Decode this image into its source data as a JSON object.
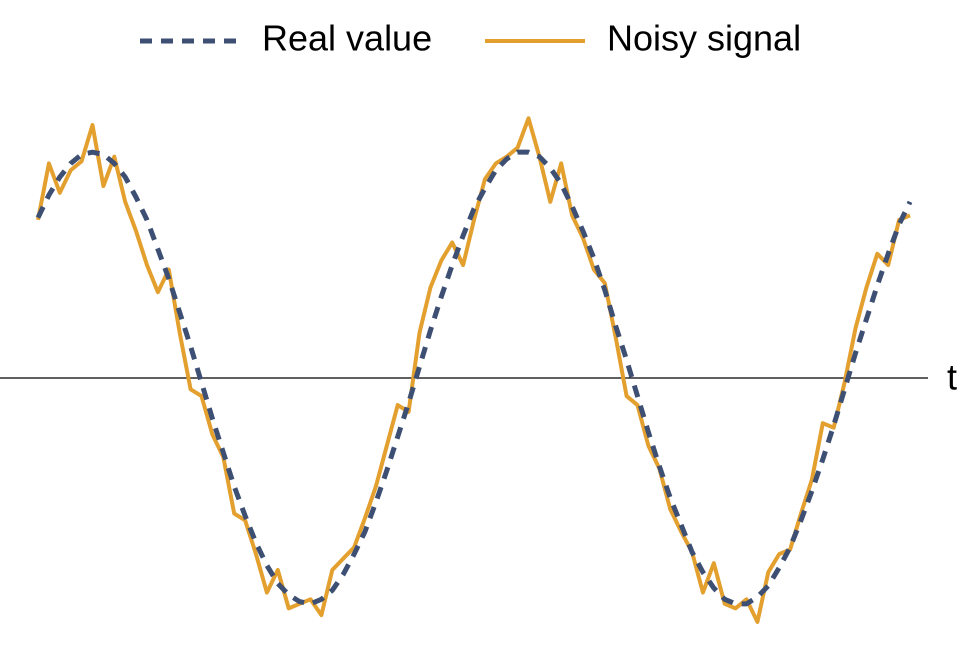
{
  "chart_data": {
    "type": "line",
    "axis_label": "t",
    "xlim": [
      0,
      80
    ],
    "ylim": [
      -1.2,
      1.2
    ],
    "x": [
      0,
      1,
      2,
      3,
      4,
      5,
      6,
      7,
      8,
      9,
      10,
      11,
      12,
      13,
      14,
      15,
      16,
      17,
      18,
      19,
      20,
      21,
      22,
      23,
      24,
      25,
      26,
      27,
      28,
      29,
      30,
      31,
      32,
      33,
      34,
      35,
      36,
      37,
      38,
      39,
      40,
      41,
      42,
      43,
      44,
      45,
      46,
      47,
      48,
      49,
      50,
      51,
      52,
      53,
      54,
      55,
      56,
      57,
      58,
      59,
      60,
      61,
      62,
      63,
      64,
      65,
      66,
      67,
      68,
      69,
      70,
      71,
      72,
      73,
      74,
      75,
      76,
      77,
      78,
      79,
      80
    ],
    "series": [
      {
        "name": "Real value",
        "color": "#3d4f73",
        "dashed": true,
        "values": [
          0.71,
          0.81,
          0.89,
          0.95,
          0.99,
          1.0,
          0.99,
          0.95,
          0.89,
          0.8,
          0.7,
          0.57,
          0.44,
          0.29,
          0.14,
          -0.02,
          -0.18,
          -0.33,
          -0.48,
          -0.61,
          -0.73,
          -0.83,
          -0.91,
          -0.96,
          -0.99,
          -1.0,
          -0.98,
          -0.94,
          -0.87,
          -0.78,
          -0.68,
          -0.55,
          -0.41,
          -0.26,
          -0.11,
          0.05,
          0.21,
          0.36,
          0.5,
          0.63,
          0.75,
          0.84,
          0.92,
          0.97,
          1.0,
          1.0,
          0.98,
          0.93,
          0.86,
          0.76,
          0.65,
          0.53,
          0.39,
          0.23,
          0.08,
          -0.08,
          -0.24,
          -0.39,
          -0.53,
          -0.65,
          -0.77,
          -0.86,
          -0.93,
          -0.98,
          -1.0,
          -1.0,
          -0.97,
          -0.92,
          -0.84,
          -0.75,
          -0.63,
          -0.5,
          -0.36,
          -0.21,
          -0.05,
          0.11,
          0.26,
          0.41,
          0.55,
          0.68,
          0.78
        ]
      },
      {
        "name": "Noisy signal",
        "color": "#e3a02f",
        "dashed": false,
        "values": [
          0.7,
          0.95,
          0.82,
          0.92,
          0.96,
          1.12,
          0.85,
          0.98,
          0.78,
          0.65,
          0.5,
          0.38,
          0.48,
          0.2,
          -0.05,
          -0.08,
          -0.25,
          -0.35,
          -0.6,
          -0.63,
          -0.78,
          -0.95,
          -0.85,
          -1.02,
          -1.0,
          -0.98,
          -1.05,
          -0.85,
          -0.8,
          -0.75,
          -0.62,
          -0.48,
          -0.3,
          -0.12,
          -0.15,
          0.2,
          0.4,
          0.52,
          0.6,
          0.5,
          0.7,
          0.88,
          0.95,
          0.98,
          1.02,
          1.15,
          0.98,
          0.78,
          0.95,
          0.72,
          0.62,
          0.48,
          0.42,
          0.18,
          -0.08,
          -0.12,
          -0.3,
          -0.4,
          -0.58,
          -0.68,
          -0.77,
          -0.95,
          -0.82,
          -1.0,
          -1.02,
          -0.98,
          -1.08,
          -0.86,
          -0.78,
          -0.76,
          -0.6,
          -0.45,
          -0.2,
          -0.22,
          -0.02,
          0.22,
          0.4,
          0.55,
          0.5,
          0.7,
          0.72
        ]
      }
    ]
  }
}
